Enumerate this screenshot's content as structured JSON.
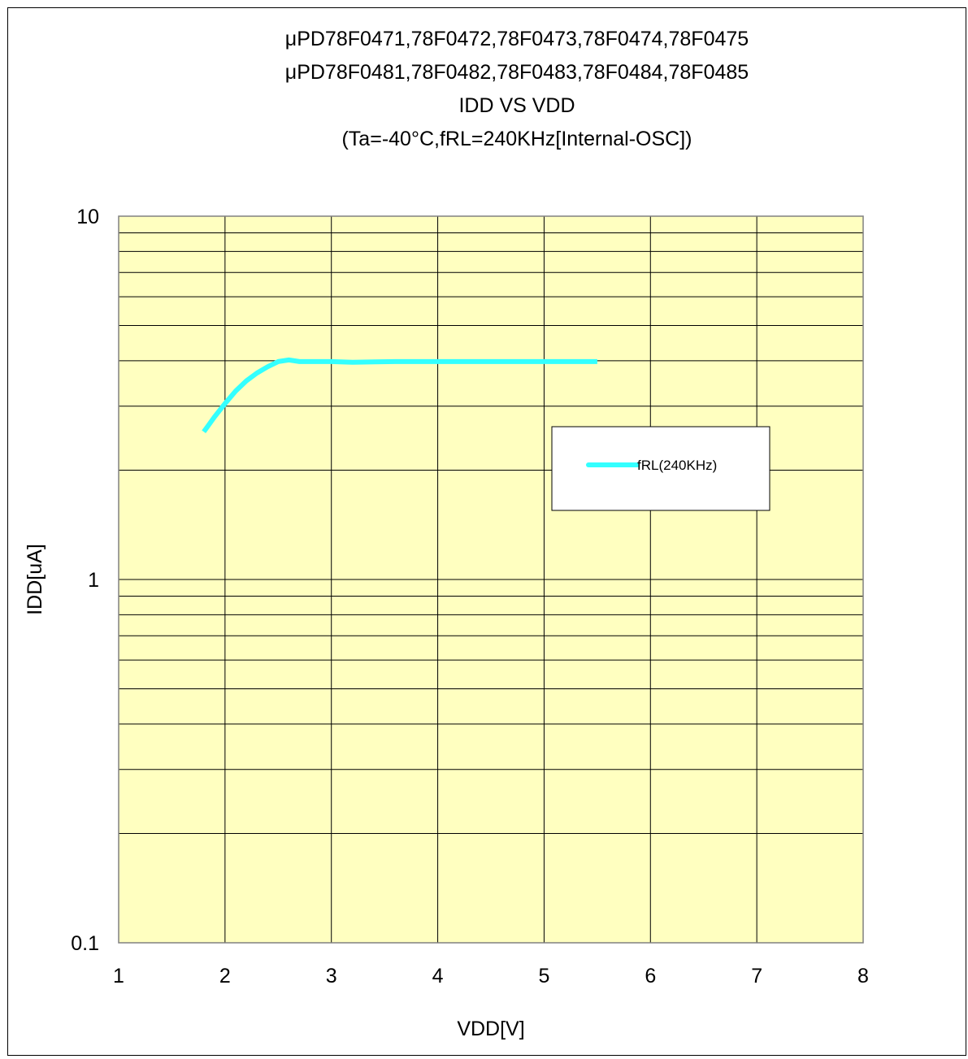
{
  "chart_data": {
    "type": "line",
    "title_lines": [
      "μPD78F0471,78F0472,78F0473,78F0474,78F0475",
      "μPD78F0481,78F0482,78F0483,78F0484,78F0485",
      "IDD VS VDD",
      "(Ta=-40°C,fRL=240KHz[Internal-OSC])"
    ],
    "xlabel": "VDD[V]",
    "ylabel": "IDD[uA]",
    "xlim": [
      1,
      8
    ],
    "ylim": [
      0.1,
      10
    ],
    "yscale": "log",
    "x_ticks": [
      "1",
      "2",
      "3",
      "4",
      "5",
      "6",
      "7",
      "8"
    ],
    "y_ticks": [
      "10",
      "1",
      "0.1"
    ],
    "grid": true,
    "plot_background": "#ffffc0",
    "legend_position": "right-middle",
    "series": [
      {
        "name": "fRL(240KHz)",
        "color": "#33ffff",
        "points": [
          {
            "x": 1.8,
            "y": 2.55
          },
          {
            "x": 1.9,
            "y": 2.8
          },
          {
            "x": 2.0,
            "y": 3.05
          },
          {
            "x": 2.1,
            "y": 3.3
          },
          {
            "x": 2.2,
            "y": 3.52
          },
          {
            "x": 2.3,
            "y": 3.7
          },
          {
            "x": 2.4,
            "y": 3.85
          },
          {
            "x": 2.5,
            "y": 3.98
          },
          {
            "x": 2.6,
            "y": 4.02
          },
          {
            "x": 2.7,
            "y": 3.98
          },
          {
            "x": 3.0,
            "y": 3.98
          },
          {
            "x": 3.2,
            "y": 3.96
          },
          {
            "x": 3.4,
            "y": 3.97
          },
          {
            "x": 3.6,
            "y": 3.98
          },
          {
            "x": 4.0,
            "y": 3.98
          },
          {
            "x": 4.5,
            "y": 3.98
          },
          {
            "x": 5.0,
            "y": 3.98
          },
          {
            "x": 5.5,
            "y": 3.98
          }
        ]
      }
    ]
  }
}
